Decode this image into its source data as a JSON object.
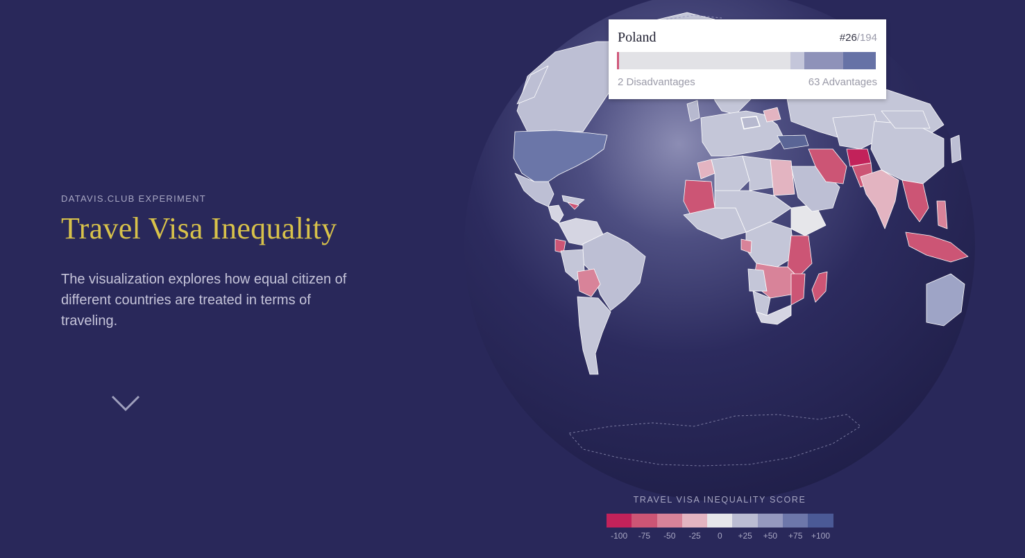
{
  "intro": {
    "eyebrow": "DATAVIS.CLUB EXPERIMENT",
    "title": "Travel Visa Inequality",
    "description": "The visualization explores how equal citizen of different countries are treated in terms of traveling.",
    "scroll_icon": "chevron-down-icon"
  },
  "colors": {
    "background": "#29285a",
    "title": "#d8c24a",
    "globe_ocean": "#25234f",
    "land_neutral": "#c4c6d8"
  },
  "tooltip": {
    "country": "Poland",
    "rank": "#26",
    "rank_total": "/194",
    "disadvantages_label": "2 Disadvantages",
    "advantages_label": "63 Advantages",
    "bar_segments": [
      {
        "share": 0.008,
        "color": "#d0587a"
      },
      {
        "share": 0.662,
        "color": "#e2e2e6"
      },
      {
        "share": 0.055,
        "color": "#c4c6da"
      },
      {
        "share": 0.15,
        "color": "#8e92b9"
      },
      {
        "share": 0.125,
        "color": "#6672a6"
      }
    ]
  },
  "legend": {
    "title": "TRAVEL VISA INEQUALITY SCORE",
    "items": [
      {
        "label": "-100",
        "color": "#c2225a"
      },
      {
        "label": "-75",
        "color": "#cc5575"
      },
      {
        "label": "-50",
        "color": "#d88399"
      },
      {
        "label": "-25",
        "color": "#e3b4c1"
      },
      {
        "label": "0",
        "color": "#e6e6ea"
      },
      {
        "label": "+25",
        "color": "#bbbdd3"
      },
      {
        "label": "+50",
        "color": "#9599bf"
      },
      {
        "label": "+75",
        "color": "#6d77aa"
      },
      {
        "label": "+100",
        "color": "#4b5a96"
      }
    ]
  }
}
